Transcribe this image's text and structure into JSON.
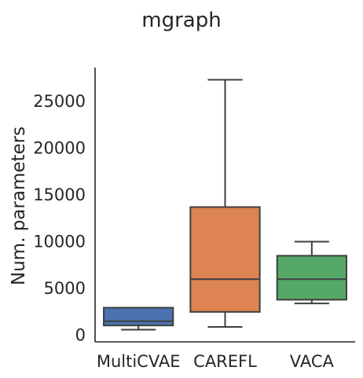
{
  "chart_data": {
    "type": "box",
    "title": "mgraph",
    "xlabel": "",
    "ylabel": "Num. parameters",
    "ylim": [
      -700,
      28600
    ],
    "yticks": [
      0,
      5000,
      10000,
      15000,
      20000,
      25000
    ],
    "ytick_labels": [
      "0",
      "5000",
      "10000",
      "15000",
      "20000",
      "25000"
    ],
    "categories": [
      "MultiCVAE",
      "CAREFL",
      "VACA"
    ],
    "boxes": [
      {
        "category": "MultiCVAE",
        "whisker_low": 600,
        "q1": 1050,
        "median": 1500,
        "q3": 2950,
        "whisker_high": 2950,
        "color": "#4c72b0"
      },
      {
        "category": "CAREFL",
        "whisker_low": 900,
        "q1": 2500,
        "median": 6000,
        "q3": 13700,
        "whisker_high": 27300,
        "color": "#dd8452"
      },
      {
        "category": "VACA",
        "whisker_low": 3400,
        "q1": 3800,
        "median": 6000,
        "q3": 8500,
        "whisker_high": 10000,
        "color": "#55a868"
      }
    ],
    "grid": false,
    "legend": "none"
  }
}
